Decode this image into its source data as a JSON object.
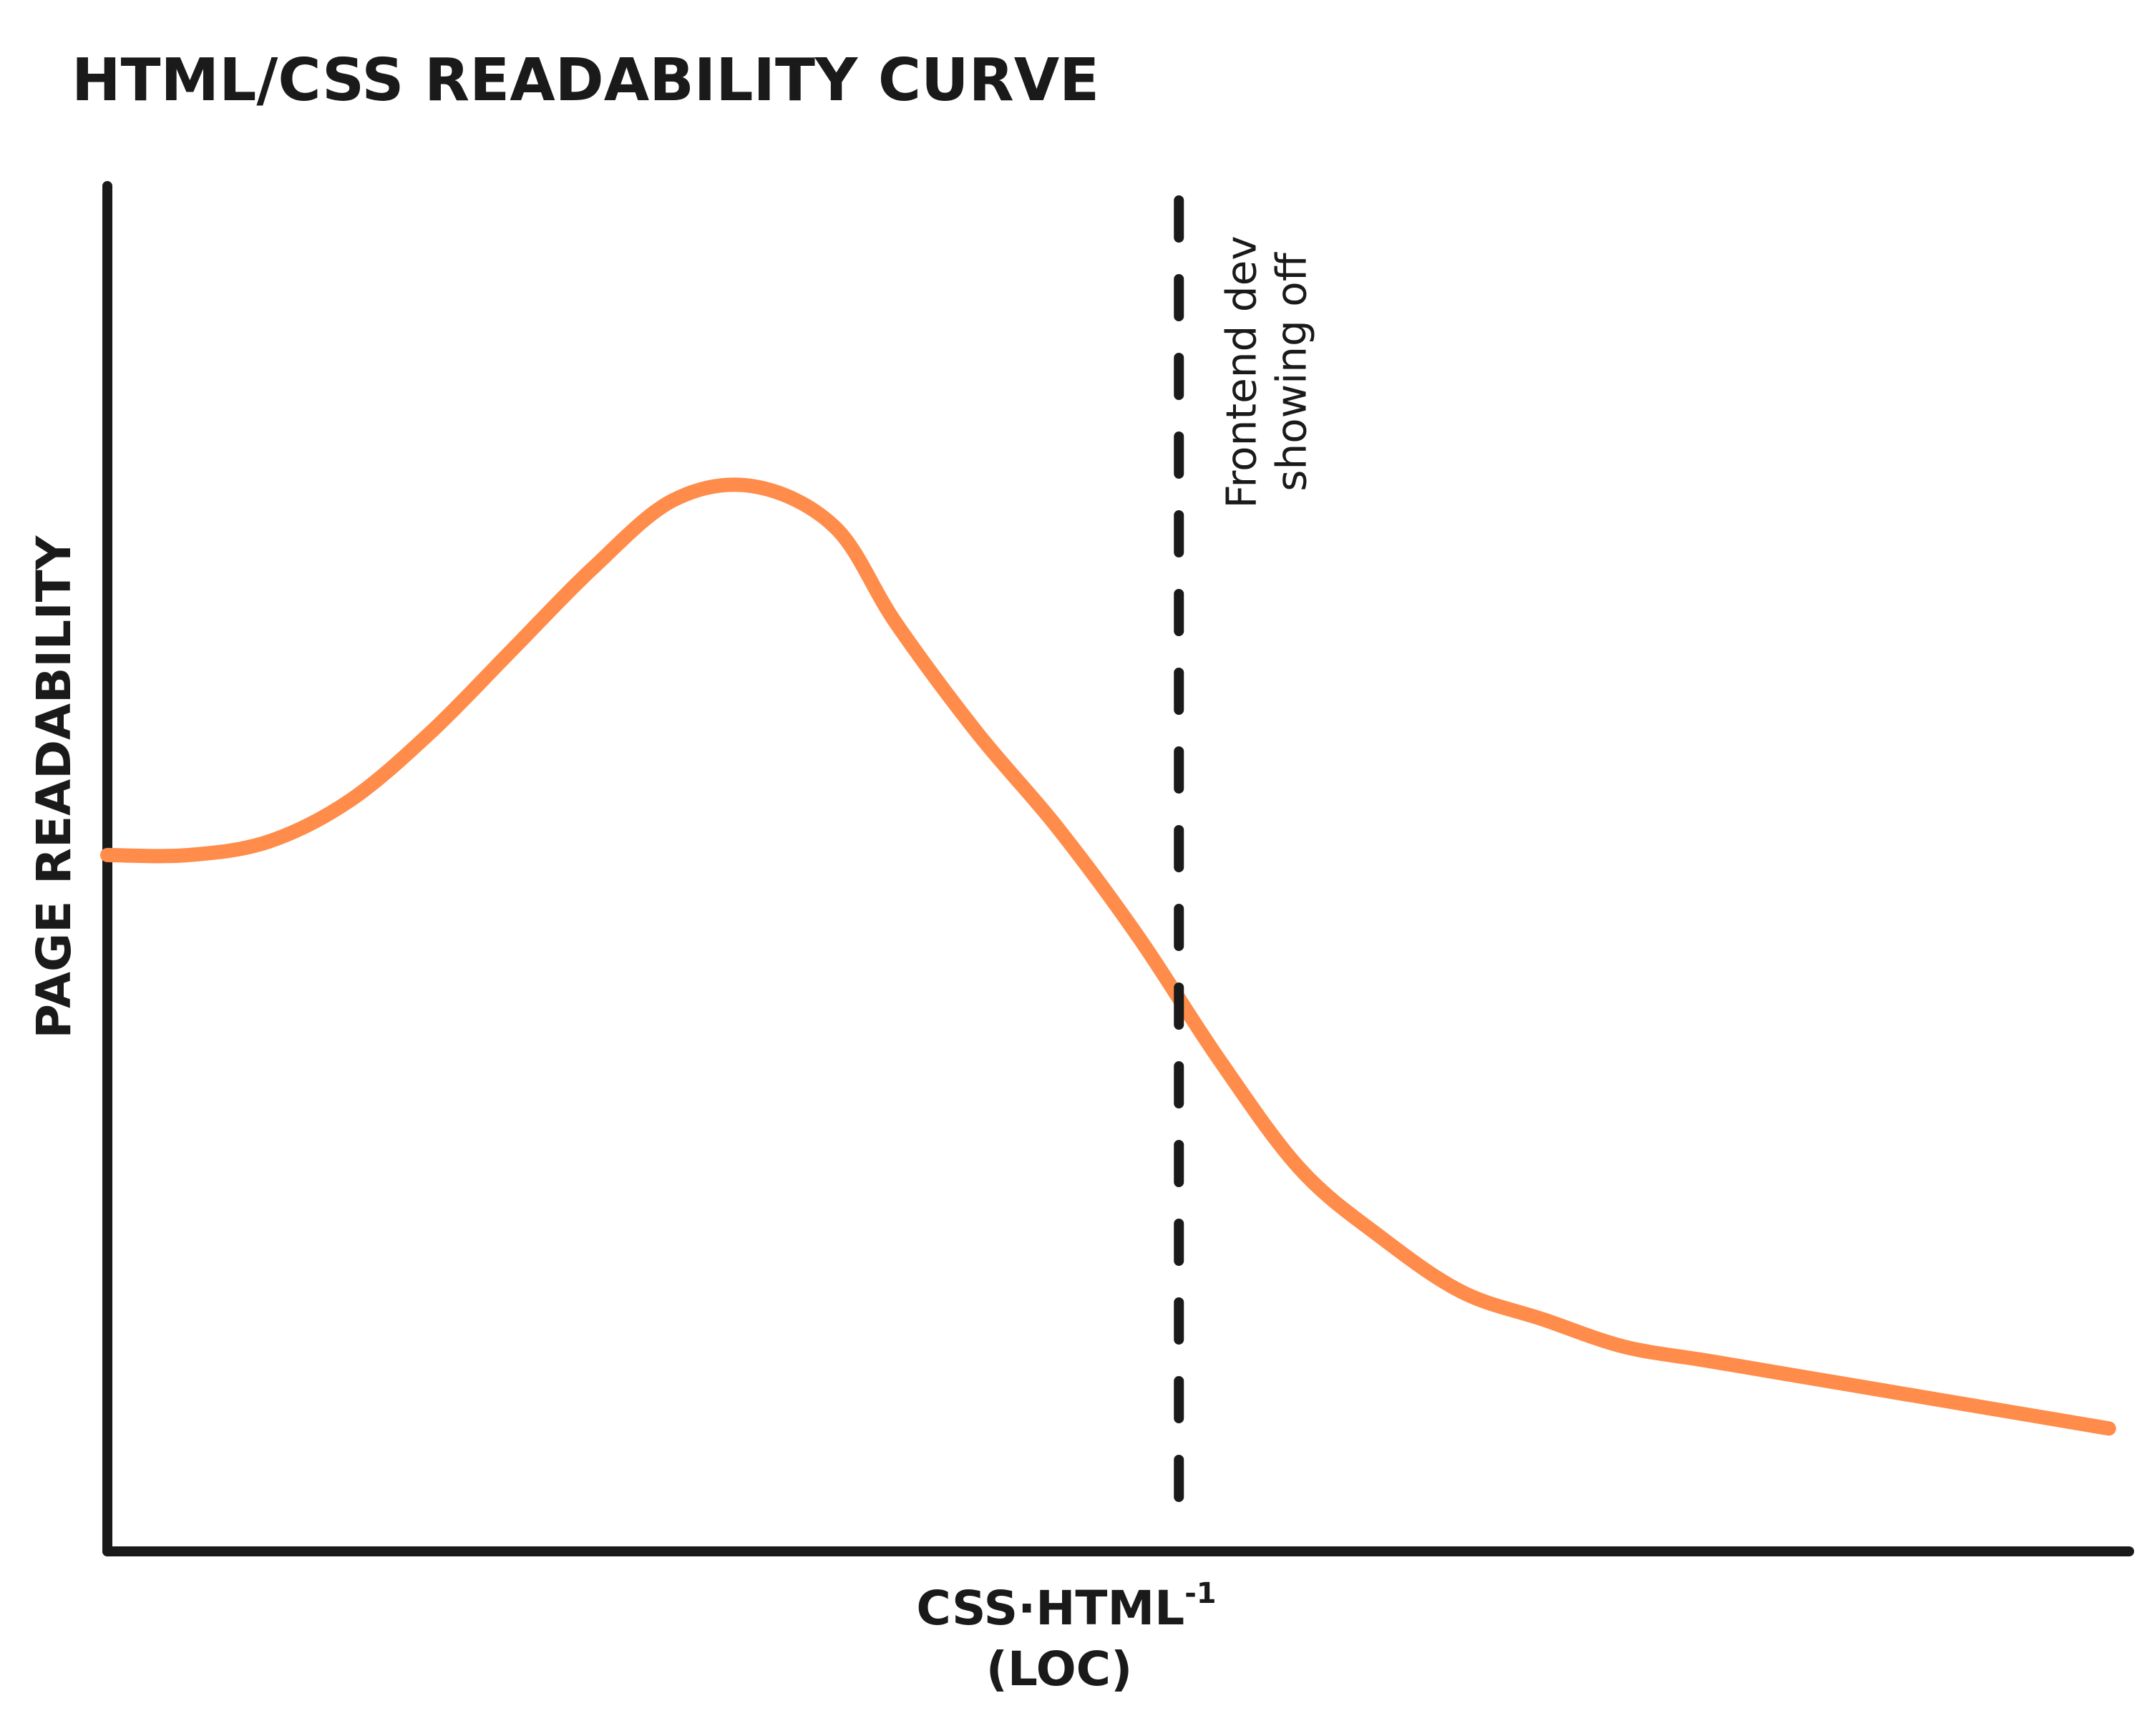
{
  "chart_data": {
    "type": "line",
    "title": "HTML/CSS READABILITY CURVE",
    "xlabel": {
      "base": "CSS·HTML",
      "superscript": "-1",
      "unit": "(LOC)"
    },
    "ylabel": "PAGE READABILITY",
    "grid": false,
    "legend": "none",
    "xlim": [
      0,
      100
    ],
    "ylim": [
      0,
      100
    ],
    "series": [
      {
        "color": "#FF8C4A",
        "x": [
          0,
          4,
          8,
          12,
          16,
          20,
          24,
          28,
          32,
          36,
          39,
          43,
          47,
          51,
          55,
          59,
          63,
          67,
          71,
          75,
          79,
          83,
          87,
          91,
          95,
          99
        ],
        "y": [
          51,
          51,
          52,
          55,
          60,
          66,
          72,
          77,
          78,
          75,
          68,
          60,
          53,
          45,
          36,
          28,
          23,
          19,
          17,
          15,
          14,
          13,
          12,
          11,
          10,
          9
        ]
      }
    ],
    "annotations": [
      {
        "type": "vline",
        "x": 53,
        "style": "dashed",
        "color": "#1a1a1a",
        "text_lines": [
          "Frontend dev",
          "showing off"
        ]
      }
    ],
    "colors": {
      "curve": "#FF8C4A",
      "ink": "#1a1a1a",
      "background": "#ffffff"
    }
  }
}
